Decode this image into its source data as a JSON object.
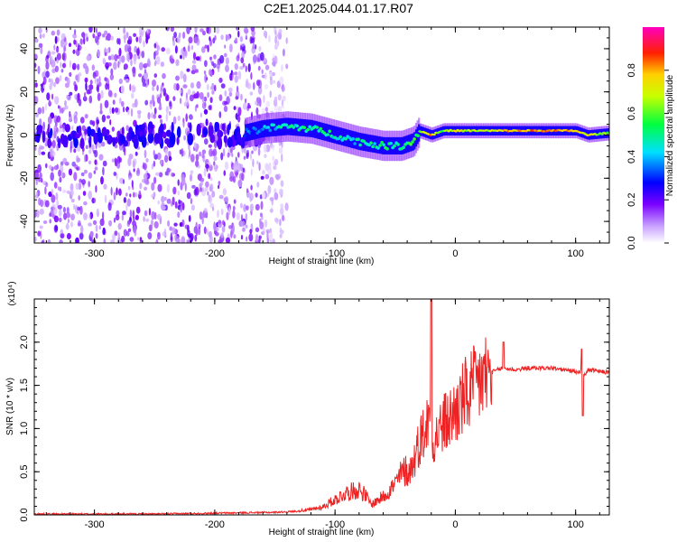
{
  "title": "C2E1.2025.044.01.17.R07",
  "colors": {
    "snr_line": "#ee2222",
    "spectrogram_low": "#8a2be2",
    "spectrogram_high": "#ff0000"
  },
  "chart_data": [
    {
      "type": "heatmap",
      "description_of_axes": "spectrogram",
      "xlabel": "Height of straight line (km)",
      "ylabel": "Frequency (Hz)",
      "xlim": [
        -350,
        128
      ],
      "ylim": [
        -50,
        50
      ],
      "xticks": [
        -300,
        -200,
        -100,
        0,
        100
      ],
      "yticks": [
        -40,
        -20,
        0,
        20,
        40
      ],
      "colorbar": {
        "label": "Normalized spectral amplitude",
        "range": [
          0,
          1
        ],
        "ticks": [
          0.0,
          0.2,
          0.4,
          0.6,
          0.8
        ],
        "colormap": "white-violet-blue-cyan-green-yellow-red-magenta"
      },
      "ridge": {
        "x": [
          -175,
          -160,
          -140,
          -120,
          -100,
          -80,
          -60,
          -45,
          -35,
          -30,
          -20,
          -10,
          0,
          20,
          50,
          80,
          100,
          110,
          128
        ],
        "frequency": [
          1,
          3,
          4,
          3,
          0,
          -3,
          -5,
          -5,
          -3,
          2,
          0,
          2,
          2,
          2,
          2,
          2,
          2,
          0,
          1
        ],
        "amplitude": [
          0.3,
          0.4,
          0.45,
          0.5,
          0.45,
          0.45,
          0.5,
          0.5,
          0.55,
          0.6,
          0.8,
          0.6,
          0.7,
          0.65,
          0.8,
          0.8,
          0.8,
          0.7,
          0.6
        ]
      },
      "noise_region_x": [
        -350,
        -160
      ]
    },
    {
      "type": "line",
      "xlabel": "Height of straight line (km)",
      "ylabel": "SNR (10 * v/v)",
      "y_multiplier": "(x10⁴)",
      "xlim": [
        -350,
        128
      ],
      "ylim": [
        0,
        2.5
      ],
      "xticks": [
        -300,
        -200,
        -100,
        0,
        100
      ],
      "yticks": [
        0.0,
        0.5,
        1.0,
        1.5,
        2.0
      ],
      "series": [
        {
          "x": [
            -350,
            -300,
            -250,
            -200,
            -150,
            -120,
            -110,
            -100,
            -90,
            -80,
            -75,
            -70,
            -60,
            -50,
            -45,
            -40,
            -35,
            -30,
            -25,
            -22,
            -20,
            -18,
            -15,
            -10,
            -5,
            0,
            5,
            10,
            15,
            20,
            25,
            30,
            35,
            40,
            50,
            60,
            70,
            80,
            90,
            100,
            103,
            105,
            107,
            110,
            120,
            128
          ],
          "y": [
            0.01,
            0.01,
            0.01,
            0.02,
            0.03,
            0.05,
            0.08,
            0.15,
            0.22,
            0.25,
            0.2,
            0.1,
            0.18,
            0.3,
            0.4,
            0.45,
            0.6,
            0.85,
            1.0,
            1.1,
            1.3,
            0.8,
            0.95,
            1.05,
            1.1,
            1.2,
            1.3,
            1.4,
            1.45,
            1.55,
            1.6,
            1.65,
            1.68,
            1.7,
            1.68,
            1.7,
            1.7,
            1.7,
            1.68,
            1.66,
            1.65,
            1.7,
            1.6,
            1.68,
            1.66,
            1.65
          ]
        }
      ]
    }
  ]
}
